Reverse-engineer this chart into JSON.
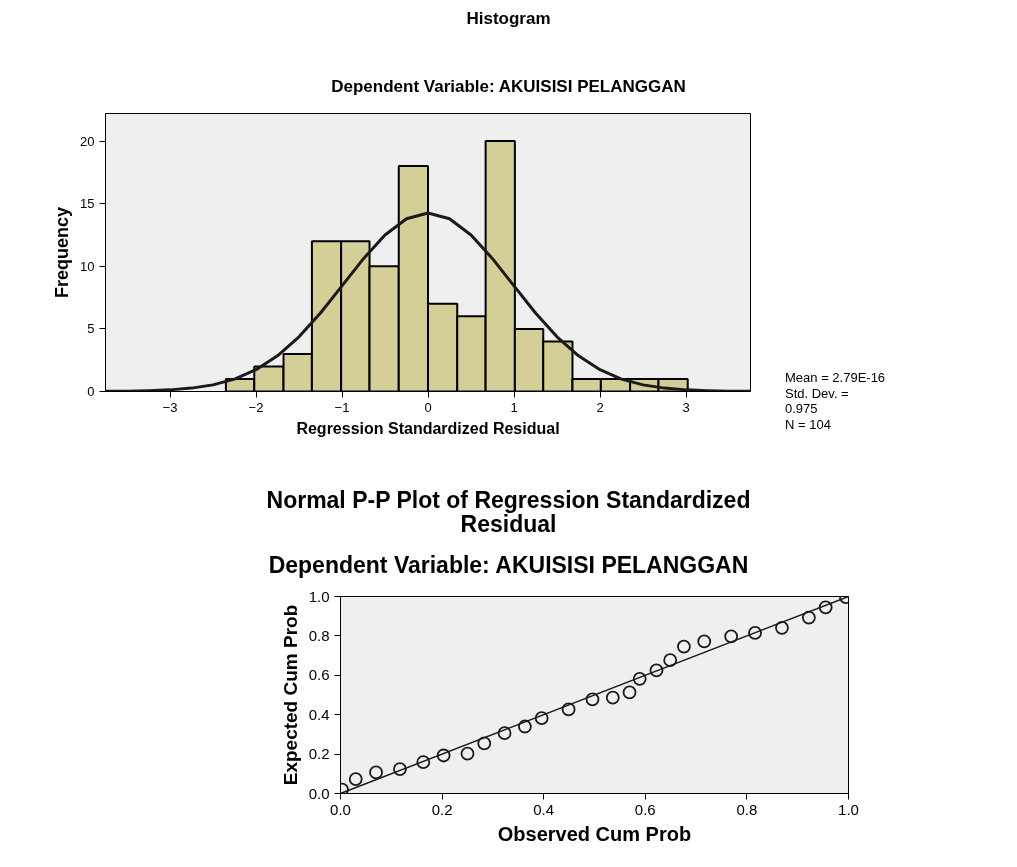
{
  "chart_data": [
    {
      "type": "histogram",
      "title": "Histogram",
      "subtitle": "Dependent Variable: AKUISISI PELANGGAN",
      "xlabel": "Regression Standardized Residual",
      "ylabel": "Frequency",
      "bins": [
        -2.35,
        -2.02,
        -1.68,
        -1.35,
        -1.01,
        -0.68,
        -0.34,
        0.0,
        0.34,
        0.67,
        1.01,
        1.34,
        1.68,
        2.01,
        2.35,
        2.68,
        3.02
      ],
      "values": [
        1,
        2,
        3,
        12,
        12,
        10,
        18,
        7,
        6,
        20,
        5,
        4,
        1,
        1,
        1,
        1
      ],
      "color": "#d4cf96",
      "series": [
        {
          "type": "line",
          "color": "#1a1a1a",
          "x": [
            -3.75,
            -3.5,
            -3.25,
            -3.0,
            -2.75,
            -2.5,
            -2.25,
            -2.0,
            -1.75,
            -1.5,
            -1.25,
            -1.0,
            -0.75,
            -0.5,
            -0.25,
            0.0,
            0.25,
            0.5,
            0.75,
            1.0,
            1.25,
            1.5,
            1.75,
            2.0,
            2.25,
            2.5,
            2.75,
            3.0,
            3.25,
            3.5,
            3.75
          ],
          "values": [
            0.01,
            0.02,
            0.06,
            0.13,
            0.27,
            0.53,
            0.99,
            1.74,
            2.85,
            4.37,
            6.27,
            8.43,
            10.61,
            12.5,
            13.8,
            14.26,
            13.8,
            12.5,
            10.61,
            8.43,
            6.27,
            4.37,
            2.85,
            1.74,
            0.99,
            0.53,
            0.27,
            0.13,
            0.06,
            0.02,
            0.01
          ]
        }
      ],
      "xlim": [
        -3.75,
        3.75
      ],
      "ylim": [
        0,
        22.2
      ],
      "xticks": [
        -3,
        -2,
        -1,
        0,
        1,
        2,
        3
      ],
      "yticks": [
        0,
        5,
        10,
        15,
        20
      ],
      "grid": false,
      "annotations": [
        "Mean = 2.79E-16",
        "Std. Dev. = 0.975",
        "N = 104"
      ]
    },
    {
      "type": "scatter",
      "title": "Normal P-P Plot of Regression Standardized Residual",
      "subtitle": "Dependent Variable: AKUISISI PELANGGAN",
      "xlabel": "Observed Cum Prob",
      "ylabel": "Expected Cum Prob",
      "series": [
        {
          "type": "scatter",
          "marker": "circle",
          "color": "#1a1a1a",
          "x": [
            0.003,
            0.03,
            0.07,
            0.117,
            0.163,
            0.203,
            0.25,
            0.283,
            0.323,
            0.363,
            0.396,
            0.449,
            0.496,
            0.536,
            0.569,
            0.589,
            0.622,
            0.649,
            0.676,
            0.716,
            0.769,
            0.816,
            0.869,
            0.922,
            0.955,
            0.995
          ],
          "values": [
            0.02,
            0.073,
            0.107,
            0.124,
            0.159,
            0.193,
            0.202,
            0.254,
            0.306,
            0.34,
            0.383,
            0.427,
            0.478,
            0.487,
            0.513,
            0.582,
            0.625,
            0.677,
            0.746,
            0.772,
            0.798,
            0.815,
            0.841,
            0.893,
            0.945,
            0.997
          ]
        },
        {
          "type": "line",
          "color": "#1a1a1a",
          "x": [
            0.0,
            1.0
          ],
          "values": [
            0.0,
            1.0
          ]
        }
      ],
      "xlim": [
        0.0,
        1.0
      ],
      "ylim": [
        0.0,
        1.0
      ],
      "xticks": [
        {
          "value": 0.0,
          "label": "0.0"
        },
        0.2,
        0.4,
        0.6,
        0.8,
        {
          "value": 1.0,
          "label": "1.0"
        }
      ],
      "yticks": [
        {
          "value": 0.0,
          "label": "0.0"
        },
        0.2,
        0.4,
        0.6,
        0.8,
        {
          "value": 1.0,
          "label": "1.0"
        }
      ],
      "grid": false
    }
  ]
}
